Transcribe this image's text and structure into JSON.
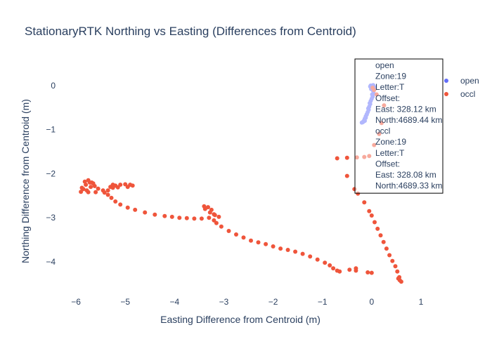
{
  "chart_data": {
    "type": "scatter",
    "title": "StationaryRTK Northing vs Easting (Differences from Centroid)",
    "xlabel": "Easting Difference from Centroid (m)",
    "ylabel": "Northing Difference from Centroid (m)",
    "xlim": [
      -6.4,
      1.3
    ],
    "ylim": [
      -4.75,
      0.62
    ],
    "xticks": [
      -6,
      -5,
      -4,
      -3,
      -2,
      -1,
      0,
      1
    ],
    "xtick_labels": [
      "−6",
      "−5",
      "−4",
      "−3",
      "−2",
      "−1",
      "0",
      "1"
    ],
    "yticks": [
      0,
      -1,
      -2,
      -3,
      -4
    ],
    "ytick_labels": [
      "0",
      "−1",
      "−2",
      "−3",
      "−4"
    ],
    "grid": false,
    "legend_position": "right",
    "series": [
      {
        "name": "open",
        "color": "#636efa",
        "points": [
          [
            -0.02,
            0.0
          ],
          [
            0.0,
            -0.02
          ],
          [
            0.02,
            -0.05
          ],
          [
            -0.01,
            -0.08
          ],
          [
            0.03,
            -0.12
          ],
          [
            0.05,
            -0.03
          ],
          [
            0.04,
            -0.18
          ],
          [
            0.02,
            -0.25
          ],
          [
            0.0,
            -0.3
          ],
          [
            -0.02,
            -0.35
          ],
          [
            -0.03,
            -0.42
          ],
          [
            -0.05,
            -0.48
          ],
          [
            -0.06,
            -0.55
          ],
          [
            -0.08,
            -0.6
          ],
          [
            -0.1,
            -0.66
          ],
          [
            -0.12,
            -0.7
          ],
          [
            -0.14,
            -0.75
          ],
          [
            -0.16,
            -0.8
          ],
          [
            -0.18,
            -0.83
          ],
          [
            -0.2,
            -0.84
          ],
          [
            -0.17,
            -0.82
          ],
          [
            -0.14,
            -0.8
          ],
          [
            -0.12,
            -0.73
          ],
          [
            -0.1,
            -0.65
          ],
          [
            -0.07,
            -0.52
          ],
          [
            -0.04,
            -0.4
          ],
          [
            0.01,
            -0.2
          ],
          [
            -0.03,
            -0.02
          ],
          [
            0.03,
            0.01
          ],
          [
            0.06,
            -0.08
          ]
        ]
      },
      {
        "name": "occl",
        "color": "#ef553b",
        "points": [
          [
            0.02,
            -0.05
          ],
          [
            0.05,
            -0.1
          ],
          [
            0.1,
            -0.2
          ],
          [
            0.25,
            -0.45
          ],
          [
            0.2,
            -0.85
          ],
          [
            0.15,
            -1.1
          ],
          [
            0.05,
            -1.35
          ],
          [
            -0.05,
            -1.6
          ],
          [
            -0.15,
            -1.62
          ],
          [
            -0.3,
            -1.63
          ],
          [
            -0.5,
            -1.64
          ],
          [
            -0.7,
            -1.65
          ],
          [
            -0.5,
            -2.05
          ],
          [
            -0.35,
            -2.35
          ],
          [
            -0.28,
            -2.45
          ],
          [
            -0.15,
            -2.65
          ],
          [
            -0.05,
            -2.85
          ],
          [
            0.0,
            -2.95
          ],
          [
            0.06,
            -3.1
          ],
          [
            0.12,
            -3.25
          ],
          [
            0.18,
            -3.4
          ],
          [
            0.24,
            -3.55
          ],
          [
            0.3,
            -3.7
          ],
          [
            0.36,
            -3.85
          ],
          [
            0.42,
            -3.98
          ],
          [
            0.48,
            -4.1
          ],
          [
            0.52,
            -4.22
          ],
          [
            0.56,
            -4.35
          ],
          [
            0.6,
            -4.45
          ],
          [
            0.57,
            -4.42
          ],
          [
            0.54,
            -4.38
          ],
          [
            0.0,
            -4.25
          ],
          [
            -0.08,
            -4.24
          ],
          [
            -0.32,
            -4.2
          ],
          [
            -0.32,
            -4.15
          ],
          [
            -0.45,
            -4.18
          ],
          [
            -0.65,
            -4.22
          ],
          [
            -0.7,
            -4.2
          ],
          [
            -0.78,
            -4.15
          ],
          [
            -0.85,
            -4.08
          ],
          [
            -0.95,
            -4.02
          ],
          [
            -1.1,
            -3.95
          ],
          [
            -1.25,
            -3.88
          ],
          [
            -1.4,
            -3.82
          ],
          [
            -1.55,
            -3.77
          ],
          [
            -1.7,
            -3.73
          ],
          [
            -1.85,
            -3.7
          ],
          [
            -2.0,
            -3.65
          ],
          [
            -2.15,
            -3.6
          ],
          [
            -2.3,
            -3.56
          ],
          [
            -2.45,
            -3.52
          ],
          [
            -2.6,
            -3.45
          ],
          [
            -2.75,
            -3.38
          ],
          [
            -2.9,
            -3.3
          ],
          [
            -3.05,
            -3.2
          ],
          [
            -3.15,
            -3.12
          ],
          [
            -3.2,
            -3.06
          ],
          [
            -3.1,
            -2.98
          ],
          [
            -3.18,
            -2.94
          ],
          [
            -3.28,
            -2.88
          ],
          [
            -3.38,
            -2.8
          ],
          [
            -3.4,
            -2.74
          ],
          [
            -3.32,
            -2.76
          ],
          [
            -3.25,
            -2.82
          ],
          [
            -3.2,
            -2.92
          ],
          [
            -3.3,
            -3.0
          ],
          [
            -3.45,
            -3.02
          ],
          [
            -3.6,
            -3.02
          ],
          [
            -3.75,
            -3.01
          ],
          [
            -3.9,
            -3.0
          ],
          [
            -4.05,
            -2.98
          ],
          [
            -4.2,
            -2.96
          ],
          [
            -4.4,
            -2.93
          ],
          [
            -4.6,
            -2.88
          ],
          [
            -4.8,
            -2.82
          ],
          [
            -4.95,
            -2.77
          ],
          [
            -5.1,
            -2.7
          ],
          [
            -5.2,
            -2.63
          ],
          [
            -5.28,
            -2.55
          ],
          [
            -5.35,
            -2.48
          ],
          [
            -5.42,
            -2.43
          ],
          [
            -5.6,
            -2.42
          ],
          [
            -5.75,
            -2.42
          ],
          [
            -5.9,
            -2.41
          ],
          [
            -5.85,
            -2.35
          ],
          [
            -5.8,
            -2.25
          ],
          [
            -5.72,
            -2.2
          ],
          [
            -5.65,
            -2.22
          ],
          [
            -5.7,
            -2.3
          ],
          [
            -5.78,
            -2.38
          ],
          [
            -5.88,
            -2.32
          ],
          [
            -5.82,
            -2.18
          ],
          [
            -5.75,
            -2.15
          ],
          [
            -5.68,
            -2.2
          ],
          [
            -5.62,
            -2.28
          ],
          [
            -5.55,
            -2.34
          ],
          [
            -5.45,
            -2.38
          ],
          [
            -5.35,
            -2.38
          ],
          [
            -5.25,
            -2.32
          ],
          [
            -5.2,
            -2.27
          ],
          [
            -5.1,
            -2.25
          ],
          [
            -5.0,
            -2.24
          ],
          [
            -4.9,
            -2.25
          ],
          [
            -4.85,
            -2.27
          ],
          [
            -4.95,
            -2.3
          ],
          [
            -5.15,
            -2.31
          ],
          [
            -5.3,
            -2.3
          ],
          [
            -5.25,
            -2.25
          ]
        ]
      }
    ],
    "annotation": {
      "lines": [
        "open",
        "Zone:19",
        "Letter:T",
        "Offset:",
        "East: 328.12 km",
        "North:4689.44 km",
        "occl",
        "Zone:19",
        "Letter:T",
        "Offset:",
        "East: 328.08 km",
        "North:4689.33 km"
      ]
    }
  }
}
